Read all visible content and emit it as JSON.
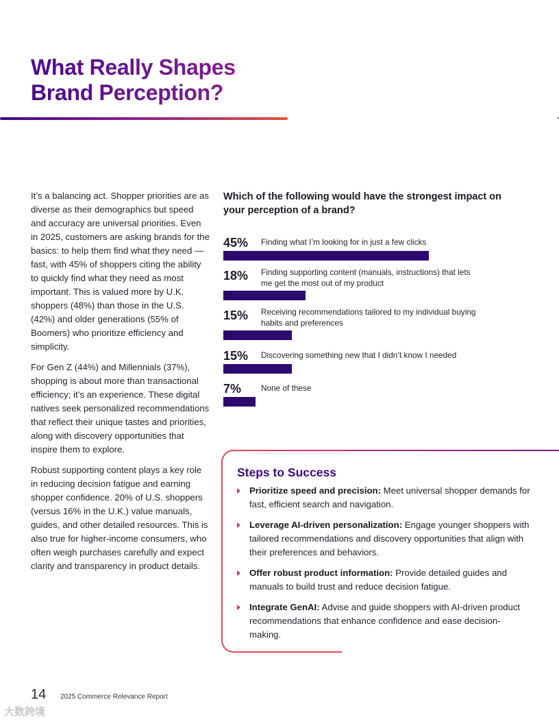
{
  "header": {
    "title_line1": "What Really Shapes",
    "title_line2": "Brand Perception?"
  },
  "body": {
    "p1": "It’s a balancing act. Shopper priorities are as diverse as their demographics but speed and accuracy are universal priorities. Even in 2025, customers are asking brands for the basics: to help them find what they need — fast, with 45% of shoppers citing the ability to quickly find what they need as most important. This is valued more by U.K. shoppers (48%) than those in the U.S. (42%) and older generations (55% of Boomers) who prioritize efficiency and simplicity.",
    "p2": "For Gen Z (44%) and Millennials (37%), shopping is about more than transactional efficiency; it’s an experience. These digital natives seek personalized recommendations that reflect their unique tastes and priorities, along with discovery opportunities that inspire them to explore.",
    "p3": "Robust supporting content plays a key role in reducing decision fatigue and earning shopper confidence. 20% of U.S. shoppers (versus 16% in the U.K.) value manuals, guides, and other detailed resources. This is also true for higher-income consumers, who often weigh purchases carefully and expect clarity and transparency in product details."
  },
  "chart_data": {
    "type": "bar",
    "title": "Which of the following would have the strongest impact on your perception of a brand?",
    "categories": [
      "Finding what I’m looking for in just a few clicks",
      "Finding supporting content (manuals, instructions) that lets me get the most out of my product",
      "Receiving recommendations tailored to my individual buying habits and preferences",
      "Discovering something new that I didn’t know I needed",
      "None of these"
    ],
    "values": [
      45,
      18,
      15,
      15,
      7
    ],
    "value_labels": [
      "45%",
      "18%",
      "15%",
      "15%",
      "7%"
    ],
    "bar_color": "#2d0a6e"
  },
  "steps": {
    "title": "Steps to Success",
    "items": [
      {
        "bold": "Prioritize speed and precision:",
        "text": " Meet universal shopper demands for fast, efficient search and navigation."
      },
      {
        "bold": "Leverage AI-driven personalization:",
        "text": " Engage younger shoppers with tailored recommendations and discovery opportunities that align with their preferences and behaviors."
      },
      {
        "bold": "Offer robust product information:",
        "text": " Provide detailed guides and manuals to build trust and reduce decision fatigue."
      },
      {
        "bold": "Integrate GenAI:",
        "text": " Advise and guide shoppers with AI-driven product recommendations that enhance confidence and ease decision-making."
      }
    ]
  },
  "footer": {
    "page_number": "14",
    "report_name": "2025 Commerce Relevance Report"
  },
  "watermark": "大数跨境",
  "colors": {
    "accent_purple": "#4b0a8c",
    "accent_magenta": "#9a2a8a",
    "accent_red": "#e0495a",
    "bar": "#2d0a6e"
  }
}
